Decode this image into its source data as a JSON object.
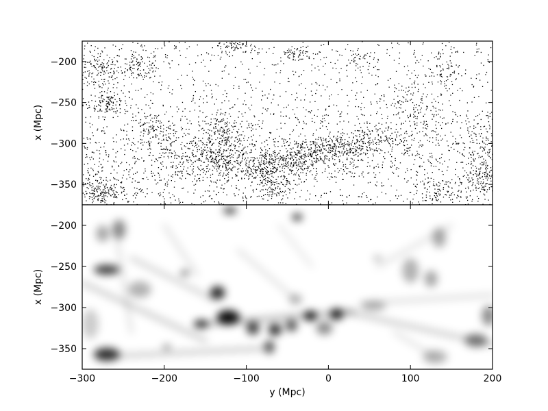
{
  "chart_data": [
    {
      "type": "scatter",
      "panel": "top",
      "description_series": "galaxy positions (points)",
      "xlim": [
        -300,
        200
      ],
      "ylim": [
        -375,
        -175
      ],
      "xlabel": "",
      "ylabel": "x (Mpc)",
      "yticks": [
        -200,
        -250,
        -300,
        -350
      ],
      "xticks": [
        -300,
        -200,
        -100,
        0,
        100,
        200
      ],
      "show_x_tick_labels": false,
      "grid": false,
      "point_color": "#000000",
      "clusters": [
        {
          "x": -280,
          "y": -210,
          "sx": 15,
          "sy": 12,
          "n": 140
        },
        {
          "x": -268,
          "y": -250,
          "sx": 12,
          "sy": 8,
          "n": 120
        },
        {
          "x": -275,
          "y": -360,
          "sx": 14,
          "sy": 8,
          "n": 150
        },
        {
          "x": -230,
          "y": -205,
          "sx": 12,
          "sy": 8,
          "n": 90
        },
        {
          "x": -215,
          "y": -285,
          "sx": 15,
          "sy": 12,
          "n": 120
        },
        {
          "x": -130,
          "y": -285,
          "sx": 15,
          "sy": 12,
          "n": 160
        },
        {
          "x": -130,
          "y": -320,
          "sx": 22,
          "sy": 12,
          "n": 230
        },
        {
          "x": -115,
          "y": -180,
          "sx": 12,
          "sy": 5,
          "n": 70
        },
        {
          "x": -70,
          "y": -330,
          "sx": 20,
          "sy": 12,
          "n": 240
        },
        {
          "x": -70,
          "y": -355,
          "sx": 10,
          "sy": 10,
          "n": 80
        },
        {
          "x": -30,
          "y": -315,
          "sx": 20,
          "sy": 10,
          "n": 220
        },
        {
          "x": 15,
          "y": -305,
          "sx": 18,
          "sy": 8,
          "n": 180
        },
        {
          "x": 60,
          "y": -295,
          "sx": 20,
          "sy": 8,
          "n": 110
        },
        {
          "x": -40,
          "y": -190,
          "sx": 10,
          "sy": 5,
          "n": 50
        },
        {
          "x": 30,
          "y": -195,
          "sx": 8,
          "sy": 5,
          "n": 30
        },
        {
          "x": 100,
          "y": -250,
          "sx": 15,
          "sy": 15,
          "n": 80
        },
        {
          "x": 130,
          "y": -360,
          "sx": 15,
          "sy": 8,
          "n": 90
        },
        {
          "x": 180,
          "y": -345,
          "sx": 15,
          "sy": 10,
          "n": 120
        },
        {
          "x": 190,
          "y": -315,
          "sx": 10,
          "sy": 15,
          "n": 90
        },
        {
          "x": 140,
          "y": -210,
          "sx": 10,
          "sy": 15,
          "n": 60
        },
        {
          "x": -180,
          "y": -310,
          "sx": 20,
          "sy": 20,
          "n": 90
        }
      ],
      "background_points": 1500
    },
    {
      "type": "heatmap",
      "panel": "bottom",
      "description_series": "smoothed density field (grayscale)",
      "xlim": [
        -300,
        200
      ],
      "ylim": [
        -375,
        -175
      ],
      "xlabel": "y (Mpc)",
      "ylabel": "x (Mpc)",
      "yticks": [
        -200,
        -250,
        -300,
        -350
      ],
      "xticks": [
        -300,
        -200,
        -100,
        0,
        100,
        200
      ],
      "grid": false,
      "colormap": "gray_r",
      "blobs": [
        {
          "x": -120,
          "y": -182,
          "sx": 8,
          "sy": 4,
          "a": 0.8
        },
        {
          "x": -38,
          "y": -190,
          "sx": 6,
          "sy": 4,
          "a": 0.9
        },
        {
          "x": -270,
          "y": -254,
          "sx": 16,
          "sy": 6,
          "a": 0.75
        },
        {
          "x": -255,
          "y": -205,
          "sx": 8,
          "sy": 12,
          "a": 0.45
        },
        {
          "x": -275,
          "y": -210,
          "sx": 8,
          "sy": 10,
          "a": 0.35
        },
        {
          "x": -175,
          "y": -258,
          "sx": 5,
          "sy": 3,
          "a": 0.7
        },
        {
          "x": -135,
          "y": -282,
          "sx": 9,
          "sy": 8,
          "a": 0.85
        },
        {
          "x": -155,
          "y": -320,
          "sx": 9,
          "sy": 5,
          "a": 0.85
        },
        {
          "x": -122,
          "y": -312,
          "sx": 14,
          "sy": 9,
          "a": 0.95
        },
        {
          "x": -92,
          "y": -325,
          "sx": 8,
          "sy": 8,
          "a": 0.75
        },
        {
          "x": -65,
          "y": -327,
          "sx": 8,
          "sy": 7,
          "a": 0.85
        },
        {
          "x": -72,
          "y": -348,
          "sx": 6,
          "sy": 8,
          "a": 0.7
        },
        {
          "x": -45,
          "y": -322,
          "sx": 7,
          "sy": 7,
          "a": 0.7
        },
        {
          "x": -22,
          "y": -310,
          "sx": 8,
          "sy": 6,
          "a": 0.95
        },
        {
          "x": 10,
          "y": -308,
          "sx": 8,
          "sy": 7,
          "a": 0.9
        },
        {
          "x": -5,
          "y": -325,
          "sx": 10,
          "sy": 8,
          "a": 0.45
        },
        {
          "x": 55,
          "y": -298,
          "sx": 15,
          "sy": 6,
          "a": 0.3
        },
        {
          "x": -270,
          "y": -357,
          "sx": 16,
          "sy": 8,
          "a": 0.8
        },
        {
          "x": -197,
          "y": -348,
          "sx": 5,
          "sy": 3,
          "a": 0.5
        },
        {
          "x": -230,
          "y": -278,
          "sx": 14,
          "sy": 10,
          "a": 0.3
        },
        {
          "x": 60,
          "y": -240,
          "sx": 5,
          "sy": 3,
          "a": 0.35
        },
        {
          "x": 100,
          "y": -255,
          "sx": 10,
          "sy": 15,
          "a": 0.3
        },
        {
          "x": 125,
          "y": -265,
          "sx": 8,
          "sy": 10,
          "a": 0.35
        },
        {
          "x": 135,
          "y": -215,
          "sx": 8,
          "sy": 12,
          "a": 0.35
        },
        {
          "x": 180,
          "y": -340,
          "sx": 14,
          "sy": 8,
          "a": 0.5
        },
        {
          "x": 195,
          "y": -310,
          "sx": 8,
          "sy": 12,
          "a": 0.45
        },
        {
          "x": 130,
          "y": -360,
          "sx": 15,
          "sy": 8,
          "a": 0.3
        },
        {
          "x": -40,
          "y": -290,
          "sx": 8,
          "sy": 6,
          "a": 0.3
        },
        {
          "x": -290,
          "y": -320,
          "sx": 10,
          "sy": 18,
          "a": 0.2
        }
      ],
      "filaments": [
        {
          "x1": -300,
          "y1": -270,
          "x2": -150,
          "y2": -340,
          "w": 6,
          "a": 0.2
        },
        {
          "x1": -240,
          "y1": -240,
          "x2": -140,
          "y2": -290,
          "w": 5,
          "a": 0.2
        },
        {
          "x1": -150,
          "y1": -320,
          "x2": 30,
          "y2": -305,
          "w": 7,
          "a": 0.25
        },
        {
          "x1": 20,
          "y1": -305,
          "x2": 200,
          "y2": -345,
          "w": 6,
          "a": 0.2
        },
        {
          "x1": 40,
          "y1": -295,
          "x2": 200,
          "y2": -285,
          "w": 5,
          "a": 0.15
        },
        {
          "x1": -60,
          "y1": -200,
          "x2": -20,
          "y2": -250,
          "w": 3,
          "a": 0.15
        },
        {
          "x1": -200,
          "y1": -200,
          "x2": -160,
          "y2": -260,
          "w": 4,
          "a": 0.15
        },
        {
          "x1": 60,
          "y1": -250,
          "x2": 150,
          "y2": -200,
          "w": 4,
          "a": 0.15
        },
        {
          "x1": -280,
          "y1": -360,
          "x2": -80,
          "y2": -350,
          "w": 6,
          "a": 0.2
        },
        {
          "x1": -260,
          "y1": -200,
          "x2": -240,
          "y2": -330,
          "w": 4,
          "a": 0.15
        },
        {
          "x1": -110,
          "y1": -230,
          "x2": -40,
          "y2": -290,
          "w": 4,
          "a": 0.15
        },
        {
          "x1": 80,
          "y1": -330,
          "x2": 130,
          "y2": -360,
          "w": 4,
          "a": 0.15
        }
      ]
    }
  ],
  "labels": {
    "top_ylabel": "x (Mpc)",
    "bottom_ylabel": "x (Mpc)",
    "xlabel": "y (Mpc)"
  }
}
